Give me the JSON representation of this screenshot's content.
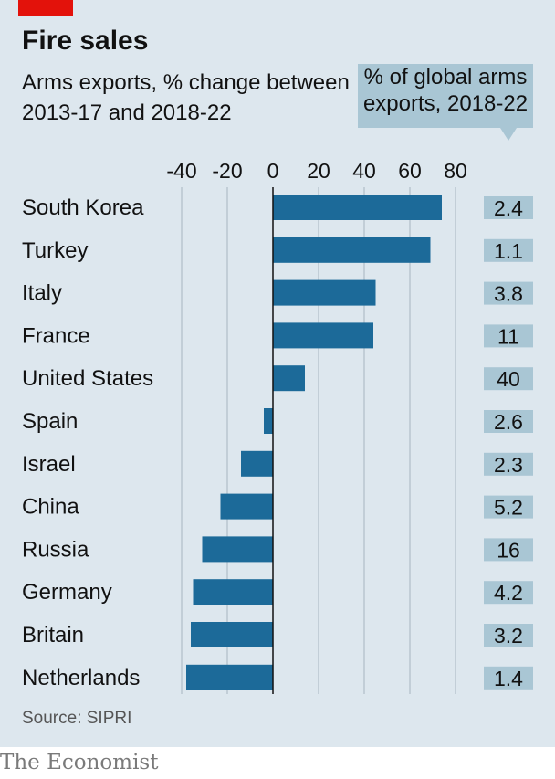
{
  "title": "Fire sales",
  "subtitle": "Arms exports, % change between 2013-17 and 2018-22",
  "callout": {
    "line1": "% of global arms",
    "line2": "exports, 2018-22"
  },
  "source": "Source: SIPRI",
  "brand": "The Economist",
  "colors": {
    "bar": "#1c6a99",
    "accent_red": "#e3120b",
    "share_box": "#a9c6d4",
    "background": "#dde7ee"
  },
  "chart_data": {
    "type": "bar",
    "orientation": "horizontal",
    "categories": [
      "South Korea",
      "Turkey",
      "Italy",
      "France",
      "United States",
      "Spain",
      "Israel",
      "China",
      "Russia",
      "Germany",
      "Britain",
      "Netherlands"
    ],
    "values": [
      74,
      69,
      45,
      44,
      14,
      -4,
      -14,
      -23,
      -31,
      -35,
      -36,
      -38
    ],
    "share_of_global_exports": [
      "2.4",
      "1.1",
      "3.8",
      "11",
      "40",
      "2.6",
      "2.3",
      "5.2",
      "16",
      "4.2",
      "3.2",
      "1.4"
    ],
    "x_ticks": [
      "-40",
      "-20",
      "0",
      "20",
      "40",
      "60",
      "80"
    ],
    "xlim": [
      -40,
      80
    ],
    "grid": true
  }
}
